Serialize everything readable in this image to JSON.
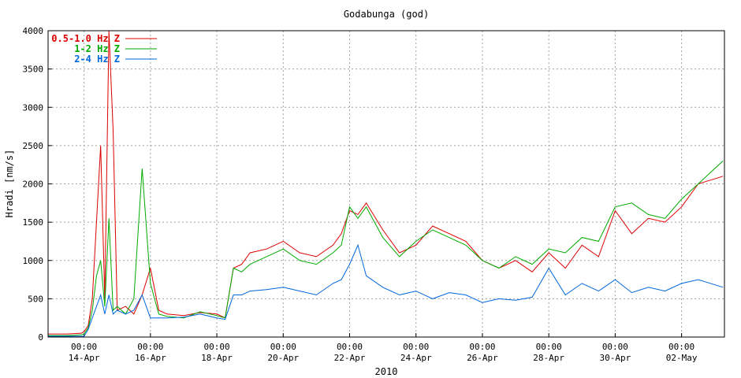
{
  "chart_data": {
    "type": "line",
    "title": "Godabunga (god)",
    "xlabel": "2010",
    "ylabel": "Hradi [nm/s]",
    "ylim": [
      0,
      4000
    ],
    "xlim": [
      "2010-04-12T22:00",
      "2010-05-03T07:00"
    ],
    "grid": true,
    "legend_position": "top-left",
    "y_ticks": [
      "0",
      "500",
      "1000",
      "1500",
      "2000",
      "2500",
      "3000",
      "3500",
      "4000"
    ],
    "x_ticks": [
      {
        "at": "2010-04-14T00:00",
        "time": "00:00",
        "date": "14-Apr"
      },
      {
        "at": "2010-04-16T00:00",
        "time": "00:00",
        "date": "16-Apr"
      },
      {
        "at": "2010-04-18T00:00",
        "time": "00:00",
        "date": "18-Apr"
      },
      {
        "at": "2010-04-20T00:00",
        "time": "00:00",
        "date": "20-Apr"
      },
      {
        "at": "2010-04-22T00:00",
        "time": "00:00",
        "date": "22-Apr"
      },
      {
        "at": "2010-04-24T00:00",
        "time": "00:00",
        "date": "24-Apr"
      },
      {
        "at": "2010-04-26T00:00",
        "time": "00:00",
        "date": "26-Apr"
      },
      {
        "at": "2010-04-28T00:00",
        "time": "00:00",
        "date": "28-Apr"
      },
      {
        "at": "2010-04-30T00:00",
        "time": "00:00",
        "date": "30-Apr"
      },
      {
        "at": "2010-05-02T00:00",
        "time": "00:00",
        "date": "02-May"
      }
    ],
    "x": [
      "2010-04-12T22:00",
      "2010-04-13T12:00",
      "2010-04-13T22:00",
      "2010-04-14T00:00",
      "2010-04-14T03:00",
      "2010-04-14T06:00",
      "2010-04-14T09:00",
      "2010-04-14T12:00",
      "2010-04-14T15:00",
      "2010-04-14T18:00",
      "2010-04-14T21:00",
      "2010-04-15T00:00",
      "2010-04-15T06:00",
      "2010-04-15T12:00",
      "2010-04-15T18:00",
      "2010-04-16T00:00",
      "2010-04-16T06:00",
      "2010-04-16T12:00",
      "2010-04-17T00:00",
      "2010-04-17T12:00",
      "2010-04-18T00:00",
      "2010-04-18T06:00",
      "2010-04-18T12:00",
      "2010-04-18T18:00",
      "2010-04-19T00:00",
      "2010-04-19T12:00",
      "2010-04-20T00:00",
      "2010-04-20T12:00",
      "2010-04-21T00:00",
      "2010-04-21T12:00",
      "2010-04-21T18:00",
      "2010-04-22T00:00",
      "2010-04-22T06:00",
      "2010-04-22T12:00",
      "2010-04-23T00:00",
      "2010-04-23T12:00",
      "2010-04-24T00:00",
      "2010-04-24T12:00",
      "2010-04-25T00:00",
      "2010-04-25T12:00",
      "2010-04-26T00:00",
      "2010-04-26T12:00",
      "2010-04-27T00:00",
      "2010-04-27T12:00",
      "2010-04-28T00:00",
      "2010-04-28T12:00",
      "2010-04-29T00:00",
      "2010-04-29T12:00",
      "2010-04-30T00:00",
      "2010-04-30T12:00",
      "2010-05-01T00:00",
      "2010-05-01T12:00",
      "2010-05-02T00:00",
      "2010-05-02T12:00",
      "2010-05-03T06:00"
    ],
    "series": [
      {
        "name": "0.5-1.0 Hz Z",
        "color": "#dd0000",
        "values": [
          40,
          40,
          50,
          70,
          150,
          500,
          1500,
          2500,
          500,
          4000,
          2700,
          350,
          400,
          300,
          550,
          900,
          350,
          300,
          280,
          320,
          300,
          250,
          900,
          950,
          1100,
          1150,
          1250,
          1100,
          1050,
          1200,
          1350,
          1650,
          1600,
          1750,
          1400,
          1100,
          1200,
          1450,
          1350,
          1250,
          1000,
          900,
          1000,
          850,
          1100,
          900,
          1200,
          1050,
          1650,
          1350,
          1550,
          1500,
          1700,
          2000,
          2100
        ]
      },
      {
        "name": "1-2 Hz Z",
        "color": "#00aa00",
        "values": [
          20,
          20,
          30,
          40,
          120,
          350,
          800,
          1000,
          400,
          1550,
          350,
          400,
          300,
          500,
          2200,
          700,
          300,
          270,
          250,
          330,
          280,
          250,
          900,
          850,
          950,
          1050,
          1150,
          1000,
          950,
          1100,
          1200,
          1700,
          1550,
          1700,
          1300,
          1050,
          1250,
          1400,
          1300,
          1200,
          1000,
          900,
          1050,
          950,
          1150,
          1100,
          1300,
          1250,
          1700,
          1750,
          1600,
          1550,
          1800,
          2000,
          2300
        ]
      },
      {
        "name": "2-4 Hz Z",
        "color": "#0066dd",
        "values": [
          10,
          10,
          10,
          10,
          100,
          250,
          400,
          550,
          300,
          550,
          300,
          350,
          300,
          350,
          550,
          250,
          250,
          250,
          260,
          300,
          250,
          230,
          550,
          550,
          600,
          620,
          650,
          600,
          550,
          700,
          750,
          950,
          1200,
          800,
          650,
          550,
          600,
          500,
          580,
          550,
          450,
          500,
          480,
          520,
          900,
          550,
          700,
          600,
          750,
          580,
          650,
          600,
          700,
          750,
          650
        ]
      }
    ]
  }
}
